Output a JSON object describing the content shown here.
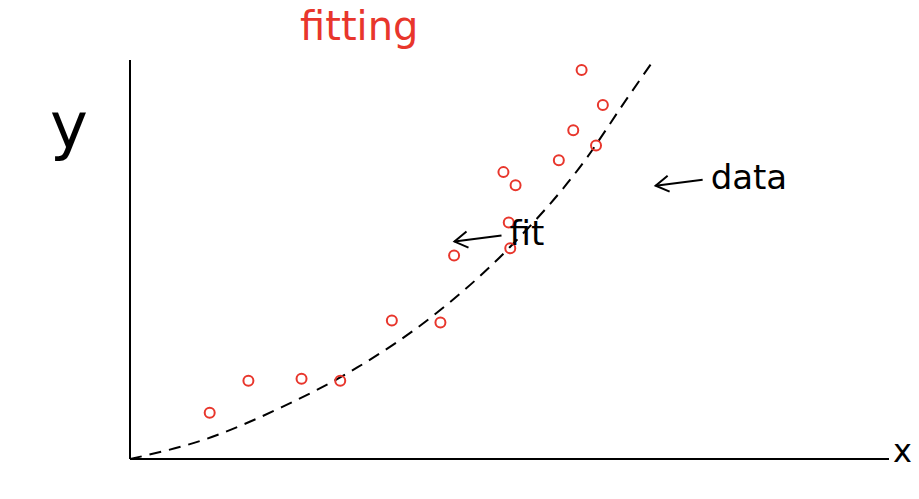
{
  "chart_data": {
    "type": "scatter",
    "title": "fitting",
    "x_label": "x",
    "y_label": "y",
    "xlim": [
      0,
      10
    ],
    "ylim": [
      0,
      10
    ],
    "xticks": [],
    "yticks": [],
    "tick_labels": false,
    "grid": false,
    "series": [
      {
        "name": "data",
        "type": "scatter",
        "color": "#e8362c",
        "marker": "circle",
        "x": [
          1.05,
          1.56,
          2.26,
          2.77,
          3.45,
          4.09,
          4.27,
          5.01,
          4.99,
          5.08,
          4.92,
          5.65,
          5.84,
          6.14,
          6.23,
          5.95
        ],
        "values": [
          1.16,
          1.96,
          2.01,
          1.96,
          3.47,
          3.42,
          5.1,
          5.28,
          5.93,
          6.86,
          7.19,
          7.49,
          8.24,
          7.86,
          8.87,
          9.75
        ]
      },
      {
        "name": "fit",
        "type": "line",
        "color": "#000000",
        "line_style": "dashed",
        "x": [
          0,
          1,
          2,
          3,
          4,
          5,
          6,
          6.5,
          6.9
        ],
        "values": [
          0,
          0.5,
          1.3,
          2.3,
          3.6,
          5.3,
          7.5,
          8.9,
          10
        ]
      }
    ],
    "annotations": [
      {
        "text": "data",
        "x": 7.65,
        "y": 7.0
      },
      {
        "text": "fit",
        "x": 5.0,
        "y": 5.6
      }
    ]
  }
}
